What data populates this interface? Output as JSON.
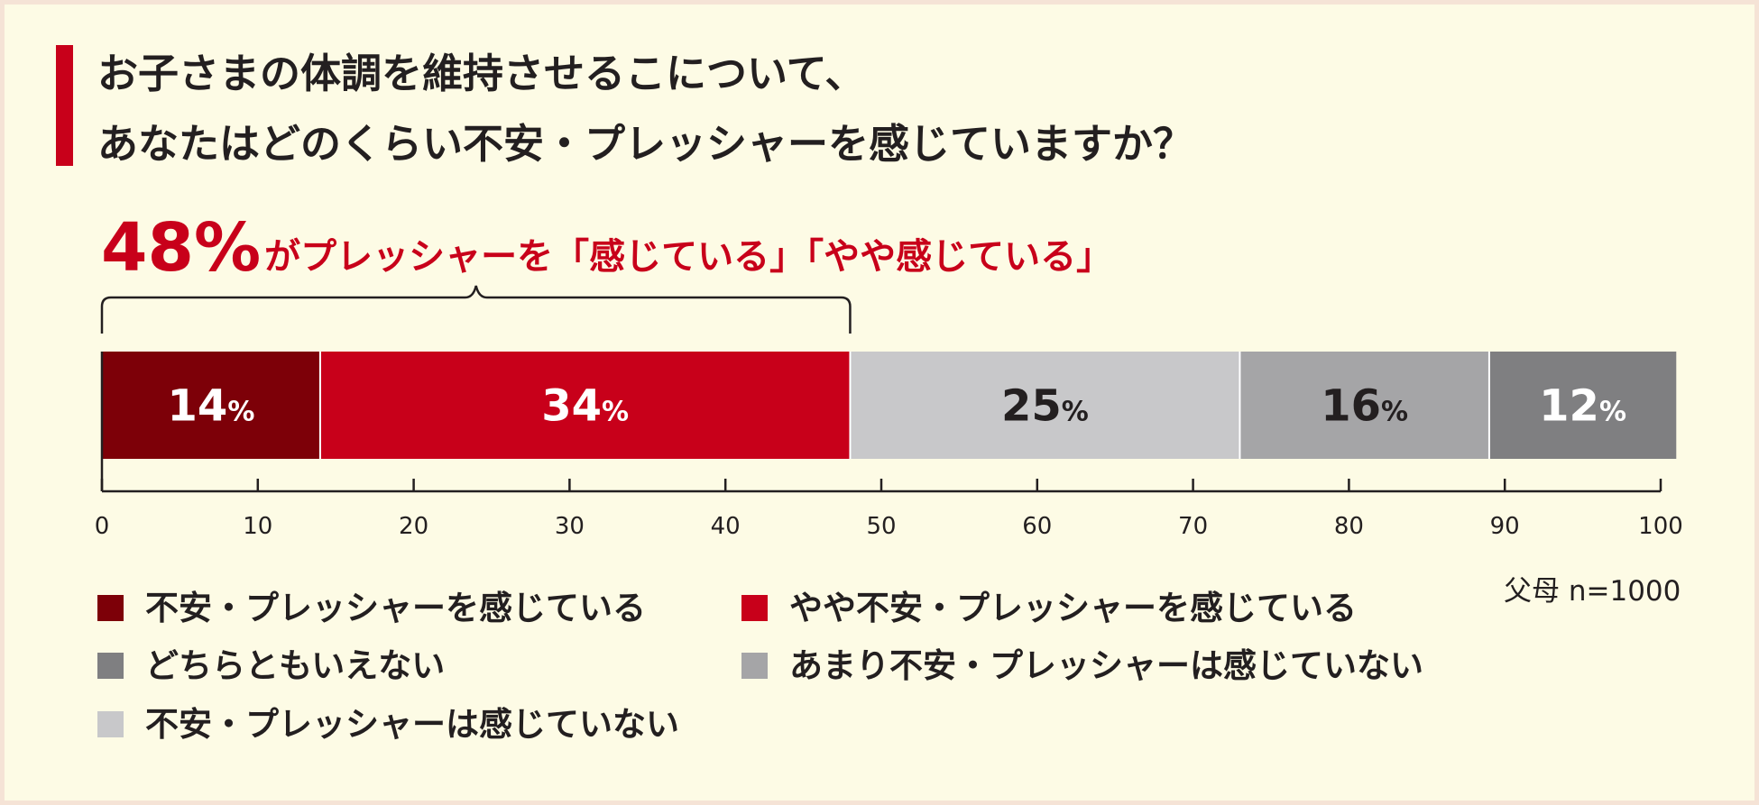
{
  "title": {
    "line1": "お子さまの体調を維持させるこについて、",
    "line2": "あなたはどのくらい不安・プレッシャーを感じていますか？"
  },
  "headline": {
    "percent": "48%",
    "text": "がプレッシャーを「感じている」「やや感じている」"
  },
  "sample_note": "父母 n=1000",
  "colors": {
    "accent": "#c8001a",
    "background": "#fdfbe5"
  },
  "chart_data": {
    "type": "bar",
    "orientation": "horizontal-stacked",
    "xlim": [
      0,
      100
    ],
    "x_ticks": [
      "0",
      "10",
      "20",
      "30",
      "40",
      "50",
      "60",
      "70",
      "80",
      "90",
      "100"
    ],
    "bracket_range": [
      0,
      48
    ],
    "segments": [
      {
        "name": "不安・プレッシャーを感じている",
        "value": 14,
        "label": "14",
        "unit": "%",
        "color": "#7d0008",
        "text_color": "#ffffff"
      },
      {
        "name": "やや不安・プレッシャーを感じている",
        "value": 34,
        "label": "34",
        "unit": "%",
        "color": "#c8001a",
        "text_color": "#ffffff"
      },
      {
        "name": "不安・プレッシャーは感じていない",
        "value": 25,
        "label": "25",
        "unit": "%",
        "color": "#c8c8ca",
        "text_color": "#231f20"
      },
      {
        "name": "あまり不安・プレッシャーは感じていない",
        "value": 16,
        "label": "16",
        "unit": "%",
        "color": "#a5a5a7",
        "text_color": "#231f20"
      },
      {
        "name": "どちらともいえない",
        "value": 12,
        "label": "12",
        "unit": "%",
        "color": "#7f7f81",
        "text_color": "#ffffff"
      }
    ],
    "legend": [
      {
        "label": "不安・プレッシャーを感じている",
        "color": "#7d0008"
      },
      {
        "label": "やや不安・プレッシャーを感じている",
        "color": "#c8001a"
      },
      {
        "label": "どちらともいえない",
        "color": "#7f7f81"
      },
      {
        "label": "あまり不安・プレッシャーは感じていない",
        "color": "#a5a5a7"
      },
      {
        "label": "不安・プレッシャーは感じていない",
        "color": "#c8c8ca"
      }
    ]
  }
}
